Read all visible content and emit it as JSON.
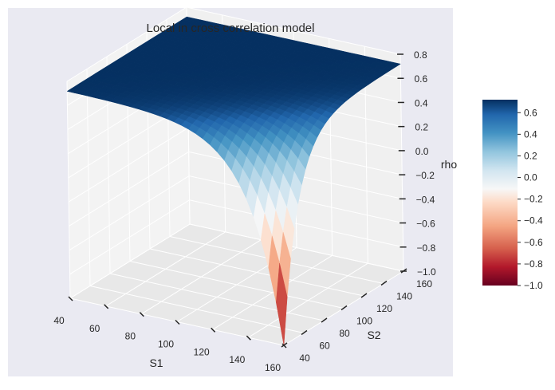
{
  "chart_data": {
    "type": "surface",
    "title": "Local in cross correlation model",
    "xlabel": "S1",
    "ylabel": "S2",
    "zlabel": "rho",
    "x_range": [
      40,
      160
    ],
    "y_range": [
      40,
      160
    ],
    "z_range": [
      -1.0,
      0.8
    ],
    "x_ticks": [
      "40",
      "60",
      "80",
      "100",
      "120",
      "140",
      "160"
    ],
    "y_ticks": [
      "40",
      "60",
      "80",
      "100",
      "120",
      "140",
      "160"
    ],
    "z_ticks": [
      "−1.0",
      "−0.8",
      "−0.6",
      "−0.4",
      "−0.2",
      "0.0",
      "0.2",
      "0.4",
      "0.6",
      "0.8"
    ],
    "colorbar": {
      "colormap": "RdBu",
      "range": [
        -1.0,
        0.72
      ],
      "ticks": [
        "−1.0",
        "−0.8",
        "−0.6",
        "−0.4",
        "−0.2",
        "0.0",
        "0.2",
        "0.4",
        "0.6"
      ],
      "tick_values": [
        -1.0,
        -0.8,
        -0.6,
        -0.4,
        -0.2,
        0.0,
        0.2,
        0.4,
        0.6
      ]
    },
    "surface_samples": [
      {
        "S1": 40,
        "S2": 40,
        "rho": 0.72
      },
      {
        "S1": 40,
        "S2": 160,
        "rho": 0.72
      },
      {
        "S1": 160,
        "S2": 160,
        "rho": 0.72
      },
      {
        "S1": 160,
        "S2": 40,
        "rho": -1.0
      },
      {
        "S1": 100,
        "S2": 100,
        "rho": 0.55
      }
    ],
    "grid": true,
    "style": "seaborn"
  }
}
